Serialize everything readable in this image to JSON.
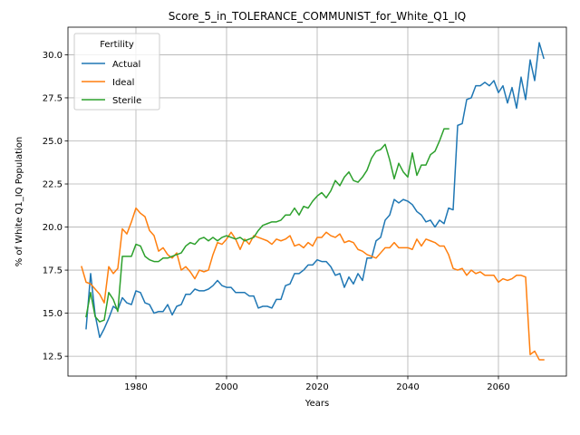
{
  "chart_data": {
    "type": "line",
    "title": "Score_5_in_TOLERANCE_COMMUNIST_for_White_Q1_IQ",
    "xlabel": "Years",
    "ylabel": "% of White Q1_IQ Population",
    "xlim": [
      1965,
      2075
    ],
    "ylim": [
      11.35,
      31.6
    ],
    "xticks": [
      1980,
      2000,
      2020,
      2040,
      2060
    ],
    "yticks": [
      12.5,
      15.0,
      17.5,
      20.0,
      22.5,
      25.0,
      27.5,
      30.0
    ],
    "ytick_labels": [
      "12.5",
      "15.0",
      "17.5",
      "20.0",
      "22.5",
      "25.0",
      "27.5",
      "30.0"
    ],
    "grid": true,
    "legend": {
      "title": "Fertility",
      "placement": "upper-left"
    },
    "series": [
      {
        "name": "Actual",
        "color": "#1f77b4",
        "x": [
          1969,
          1970,
          1971,
          1972,
          1973,
          1974,
          1975,
          1976,
          1977,
          1978,
          1979,
          1980,
          1981,
          1982,
          1983,
          1984,
          1985,
          1986,
          1987,
          1988,
          1989,
          1990,
          1991,
          1992,
          1993,
          1994,
          1995,
          1996,
          1997,
          1998,
          1999,
          2000,
          2001,
          2002,
          2003,
          2004,
          2005,
          2006,
          2007,
          2008,
          2009,
          2010,
          2011,
          2012,
          2013,
          2014,
          2015,
          2016,
          2017,
          2018,
          2019,
          2020,
          2021,
          2022,
          2023,
          2024,
          2025,
          2026,
          2027,
          2028,
          2029,
          2030,
          2031,
          2032,
          2033,
          2034,
          2035,
          2036,
          2037,
          2038,
          2039,
          2040,
          2041,
          2042,
          2043,
          2044,
          2045,
          2046,
          2047,
          2048,
          2049,
          2050,
          2051,
          2052,
          2053,
          2054,
          2055,
          2056,
          2057,
          2058,
          2059,
          2060,
          2061,
          2062,
          2063,
          2064,
          2065,
          2066,
          2067,
          2068,
          2069,
          2070
        ],
        "values": [
          14.1,
          17.3,
          14.9,
          13.6,
          14.1,
          14.7,
          15.4,
          15.2,
          15.9,
          15.6,
          15.5,
          16.3,
          16.2,
          15.6,
          15.5,
          15.0,
          15.1,
          15.1,
          15.5,
          14.9,
          15.4,
          15.5,
          16.1,
          16.1,
          16.4,
          16.3,
          16.3,
          16.4,
          16.6,
          16.9,
          16.6,
          16.5,
          16.5,
          16.2,
          16.2,
          16.2,
          16.0,
          16.0,
          15.3,
          15.4,
          15.4,
          15.3,
          15.8,
          15.8,
          16.6,
          16.7,
          17.3,
          17.3,
          17.5,
          17.8,
          17.8,
          18.1,
          18.0,
          18.0,
          17.7,
          17.2,
          17.3,
          16.5,
          17.1,
          16.7,
          17.3,
          16.9,
          18.2,
          18.2,
          19.2,
          19.4,
          20.4,
          20.7,
          21.6,
          21.4,
          21.6,
          21.5,
          21.3,
          20.9,
          20.7,
          20.3,
          20.4,
          20.0,
          20.4,
          20.2,
          21.1,
          21.0,
          25.9,
          26.0,
          27.4,
          27.5,
          28.2,
          28.2,
          28.4,
          28.2,
          28.5,
          27.8,
          28.2,
          27.2,
          28.1,
          26.9,
          28.7,
          27.4,
          29.7,
          28.5,
          30.7,
          29.8
        ]
      },
      {
        "name": "Ideal",
        "color": "#ff7f0e",
        "x": [
          1968,
          1969,
          1970,
          1971,
          1972,
          1973,
          1974,
          1975,
          1976,
          1977,
          1978,
          1979,
          1980,
          1981,
          1982,
          1983,
          1984,
          1985,
          1986,
          1987,
          1988,
          1989,
          1990,
          1991,
          1992,
          1993,
          1994,
          1995,
          1996,
          1997,
          1998,
          1999,
          2000,
          2001,
          2002,
          2003,
          2004,
          2005,
          2006,
          2007,
          2008,
          2009,
          2010,
          2011,
          2012,
          2013,
          2014,
          2015,
          2016,
          2017,
          2018,
          2019,
          2020,
          2021,
          2022,
          2023,
          2024,
          2025,
          2026,
          2027,
          2028,
          2029,
          2030,
          2031,
          2032,
          2033,
          2034,
          2035,
          2036,
          2037,
          2038,
          2039,
          2040,
          2041,
          2042,
          2043,
          2044,
          2045,
          2046,
          2047,
          2048,
          2049,
          2050,
          2051,
          2052,
          2053,
          2054,
          2055,
          2056,
          2057,
          2058,
          2059,
          2060,
          2061,
          2062,
          2063,
          2064,
          2065,
          2066,
          2067,
          2068,
          2069,
          2070
        ],
        "values": [
          17.7,
          16.8,
          16.7,
          16.4,
          16.1,
          15.6,
          17.7,
          17.3,
          17.6,
          19.9,
          19.6,
          20.3,
          21.1,
          20.8,
          20.6,
          19.8,
          19.5,
          18.6,
          18.8,
          18.4,
          18.2,
          18.5,
          17.5,
          17.7,
          17.4,
          17.0,
          17.5,
          17.4,
          17.5,
          18.4,
          19.1,
          19.0,
          19.3,
          19.7,
          19.3,
          18.7,
          19.3,
          19.0,
          19.5,
          19.4,
          19.3,
          19.2,
          19.0,
          19.3,
          19.2,
          19.3,
          19.5,
          18.9,
          19.0,
          18.8,
          19.1,
          18.9,
          19.4,
          19.4,
          19.7,
          19.5,
          19.4,
          19.6,
          19.1,
          19.2,
          19.1,
          18.7,
          18.6,
          18.4,
          18.3,
          18.2,
          18.5,
          18.8,
          18.8,
          19.1,
          18.8,
          18.8,
          18.8,
          18.7,
          19.3,
          18.9,
          19.3,
          19.2,
          19.1,
          18.9,
          18.9,
          18.4,
          17.6,
          17.5,
          17.6,
          17.2,
          17.5,
          17.3,
          17.4,
          17.2,
          17.2,
          17.2,
          16.8,
          17.0,
          16.9,
          17.0,
          17.2,
          17.2,
          17.1,
          12.6,
          12.8,
          12.3,
          12.3
        ]
      },
      {
        "name": "Sterile",
        "color": "#2ca02c",
        "x": [
          1969,
          1970,
          1971,
          1972,
          1973,
          1974,
          1975,
          1976,
          1977,
          1978,
          1979,
          1980,
          1981,
          1982,
          1983,
          1984,
          1985,
          1986,
          1987,
          1988,
          1989,
          1990,
          1991,
          1992,
          1993,
          1994,
          1995,
          1996,
          1997,
          1998,
          1999,
          2000,
          2001,
          2002,
          2003,
          2004,
          2005,
          2006,
          2007,
          2008,
          2009,
          2010,
          2011,
          2012,
          2013,
          2014,
          2015,
          2016,
          2017,
          2018,
          2019,
          2020,
          2021,
          2022,
          2023,
          2024,
          2025,
          2026,
          2027,
          2028,
          2029,
          2030,
          2031,
          2032,
          2033,
          2034,
          2035,
          2036,
          2037,
          2038,
          2039,
          2040,
          2041,
          2042,
          2043,
          2044,
          2045,
          2046,
          2047,
          2048,
          2049
        ],
        "values": [
          14.8,
          16.2,
          14.8,
          14.5,
          14.6,
          16.2,
          15.8,
          15.1,
          18.3,
          18.3,
          18.3,
          19.0,
          18.9,
          18.3,
          18.1,
          18.0,
          18.0,
          18.2,
          18.2,
          18.3,
          18.4,
          18.5,
          18.9,
          19.1,
          19.0,
          19.3,
          19.4,
          19.2,
          19.4,
          19.2,
          19.4,
          19.5,
          19.4,
          19.3,
          19.4,
          19.2,
          19.3,
          19.4,
          19.8,
          20.1,
          20.2,
          20.3,
          20.3,
          20.4,
          20.7,
          20.7,
          21.1,
          20.7,
          21.2,
          21.1,
          21.5,
          21.8,
          22.0,
          21.7,
          22.1,
          22.7,
          22.4,
          22.9,
          23.2,
          22.7,
          22.6,
          22.9,
          23.3,
          24.0,
          24.4,
          24.5,
          24.8,
          23.9,
          22.8,
          23.7,
          23.2,
          22.9,
          24.3,
          23.0,
          23.6,
          23.6,
          24.2,
          24.4,
          25.0,
          25.7,
          25.7
        ]
      }
    ]
  }
}
